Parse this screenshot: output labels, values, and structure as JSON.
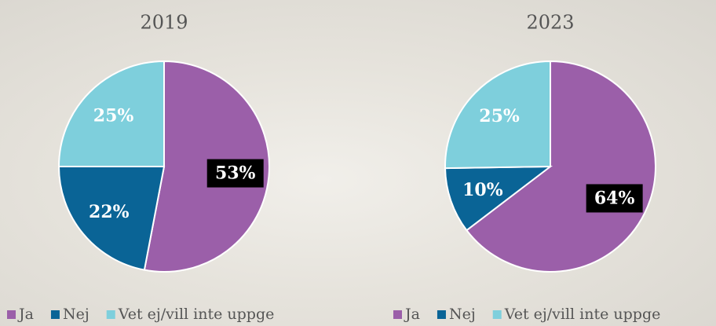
{
  "chart_data": [
    {
      "type": "pie",
      "title": "2019",
      "categories": [
        "Ja",
        "Nej",
        "Vet ej/vill inte uppge"
      ],
      "values": [
        53,
        22,
        25
      ],
      "value_labels": [
        "53%",
        "22%",
        "25%"
      ],
      "colors": [
        "#9b5fa9",
        "#0a6496",
        "#7ecfdc"
      ]
    },
    {
      "type": "pie",
      "title": "2023",
      "categories": [
        "Ja",
        "Nej",
        "Vet ej/vill inte uppge"
      ],
      "values": [
        64,
        10,
        25
      ],
      "value_labels": [
        "64%",
        "10%",
        "25%"
      ],
      "colors": [
        "#9b5fa9",
        "#0a6496",
        "#7ecfdc"
      ]
    }
  ]
}
